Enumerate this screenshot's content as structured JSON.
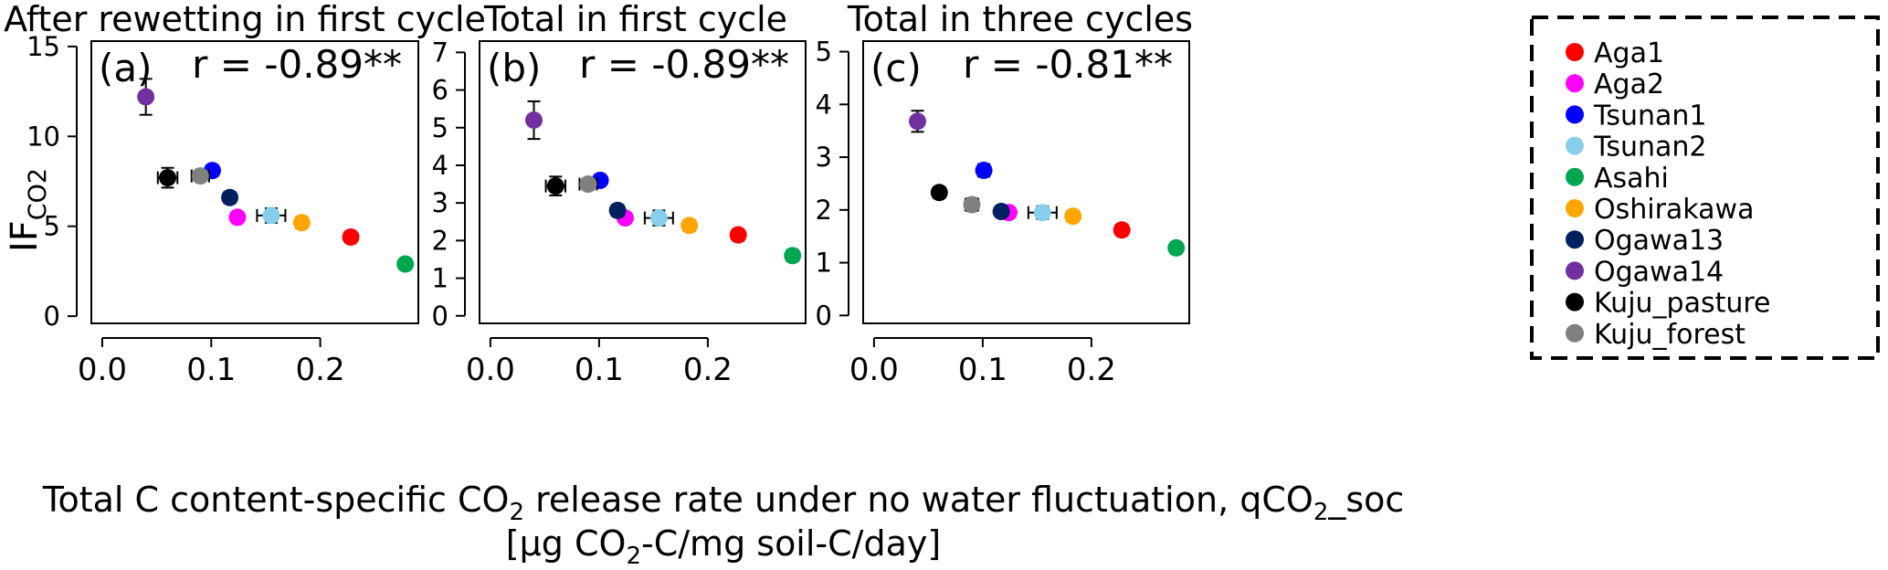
{
  "figure": {
    "y_label_main": "IF",
    "y_label_sub": "CO2",
    "x_label_line1_part1": "Total C content-specific CO",
    "x_label_line1_sub": "2",
    "x_label_line1_part2": " release rate under no water fluctuation, qCO",
    "x_label_line1_sub2": "2",
    "x_label_line1_part3": "_soc",
    "x_label_line2_part1": "[μg CO",
    "x_label_line2_sub": "2",
    "x_label_line2_part2": "-C/mg soil-C/day]"
  },
  "legend": [
    {
      "name": "Aga1",
      "color": "#ff0000"
    },
    {
      "name": "Aga2",
      "color": "#ff00ff"
    },
    {
      "name": "Tsunan1",
      "color": "#0000ff"
    },
    {
      "name": "Tsunan2",
      "color": "#87ceeb"
    },
    {
      "name": "Asahi",
      "color": "#00a650"
    },
    {
      "name": "Oshirakawa",
      "color": "#ffa500"
    },
    {
      "name": "Ogawa13",
      "color": "#002060"
    },
    {
      "name": "Ogawa14",
      "color": "#7030a0"
    },
    {
      "name": "Kuju_pasture",
      "color": "#000000"
    },
    {
      "name": "Kuju_forest",
      "color": "#808080"
    }
  ],
  "chart_data": [
    {
      "type": "scatter",
      "title": "After rewetting in first cycle",
      "panel_label": "(a)",
      "r_text": "r = -0.89**",
      "xlabel": "Total C content-specific CO2 release rate under no water fluctuation, qCO2_soc [μg CO2-C/mg soil-C/day]",
      "ylabel": "IFCO2",
      "xlim": [
        -0.01,
        0.29
      ],
      "ylim": [
        -0.4,
        15.3
      ],
      "xticks": [
        0.0,
        0.1,
        0.2
      ],
      "xtick_labels": [
        "0.0",
        "0.1",
        "0.2"
      ],
      "yticks": [
        0,
        5,
        10,
        15
      ],
      "ytick_labels": [
        "0",
        "5",
        "10",
        "15"
      ],
      "points": [
        {
          "site": "Aga1",
          "x": 0.228,
          "y": 4.4,
          "xerr": 0.005,
          "yerr": 0.3
        },
        {
          "site": "Aga2",
          "x": 0.124,
          "y": 5.5,
          "xerr": 0,
          "yerr": 0.2
        },
        {
          "site": "Tsunan1",
          "x": 0.101,
          "y": 8.1,
          "xerr": 0.005,
          "yerr": 0.3
        },
        {
          "site": "Tsunan2",
          "x": 0.155,
          "y": 5.6,
          "xerr": 0.013,
          "yerr": 0.4
        },
        {
          "site": "Asahi",
          "x": 0.278,
          "y": 2.9,
          "xerr": 0.005,
          "yerr": 0.25
        },
        {
          "site": "Oshirakawa",
          "x": 0.183,
          "y": 5.2,
          "xerr": 0.005,
          "yerr": 0.25
        },
        {
          "site": "Ogawa13",
          "x": 0.117,
          "y": 6.6,
          "xerr": 0.005,
          "yerr": 0.3
        },
        {
          "site": "Ogawa14",
          "x": 0.04,
          "y": 12.2,
          "xerr": 0,
          "yerr": 1.0
        },
        {
          "site": "Kuju_pasture",
          "x": 0.06,
          "y": 7.7,
          "xerr": 0.009,
          "yerr": 0.55
        },
        {
          "site": "Kuju_forest",
          "x": 0.09,
          "y": 7.8,
          "xerr": 0.008,
          "yerr": 0.3
        }
      ]
    },
    {
      "type": "scatter",
      "title": "Total in first cycle",
      "panel_label": "(b)",
      "r_text": "r = -0.89**",
      "xlabel": "Total C content-specific CO2 release rate under no water fluctuation, qCO2_soc [μg CO2-C/mg soil-C/day]",
      "ylabel": "IFCO2",
      "xlim": [
        -0.01,
        0.29
      ],
      "ylim": [
        -0.2,
        7.3
      ],
      "xticks": [
        0.0,
        0.1,
        0.2
      ],
      "xtick_labels": [
        "0.0",
        "0.1",
        "0.2"
      ],
      "yticks": [
        0,
        1,
        2,
        3,
        4,
        5,
        6,
        7
      ],
      "ytick_labels": [
        "0",
        "1",
        "2",
        "3",
        "4",
        "5",
        "6",
        "7"
      ],
      "points": [
        {
          "site": "Aga1",
          "x": 0.228,
          "y": 2.15,
          "xerr": 0.005,
          "yerr": 0.15
        },
        {
          "site": "Aga2",
          "x": 0.124,
          "y": 2.6,
          "xerr": 0,
          "yerr": 0.1
        },
        {
          "site": "Tsunan1",
          "x": 0.101,
          "y": 3.6,
          "xerr": 0.005,
          "yerr": 0.12
        },
        {
          "site": "Tsunan2",
          "x": 0.155,
          "y": 2.6,
          "xerr": 0.013,
          "yerr": 0.2
        },
        {
          "site": "Asahi",
          "x": 0.278,
          "y": 1.6,
          "xerr": 0.005,
          "yerr": 0.15
        },
        {
          "site": "Oshirakawa",
          "x": 0.183,
          "y": 2.4,
          "xerr": 0.005,
          "yerr": 0.12
        },
        {
          "site": "Ogawa13",
          "x": 0.117,
          "y": 2.8,
          "xerr": 0.005,
          "yerr": 0.15
        },
        {
          "site": "Ogawa14",
          "x": 0.04,
          "y": 5.2,
          "xerr": 0,
          "yerr": 0.5
        },
        {
          "site": "Kuju_pasture",
          "x": 0.06,
          "y": 3.45,
          "xerr": 0.009,
          "yerr": 0.25
        },
        {
          "site": "Kuju_forest",
          "x": 0.09,
          "y": 3.5,
          "xerr": 0.008,
          "yerr": 0.15
        }
      ]
    },
    {
      "type": "scatter",
      "title": "Total in three cycles",
      "panel_label": "(c)",
      "r_text": "r = -0.81**",
      "xlabel": "Total C content-specific CO2 release rate under no water fluctuation, qCO2_soc [μg CO2-C/mg soil-C/day]",
      "ylabel": "IFCO2",
      "xlim": [
        -0.01,
        0.29
      ],
      "ylim": [
        -0.15,
        5.2
      ],
      "xticks": [
        0.0,
        0.1,
        0.2
      ],
      "xtick_labels": [
        "0.0",
        "0.1",
        "0.2"
      ],
      "yticks": [
        0,
        1,
        2,
        3,
        4,
        5
      ],
      "ytick_labels": [
        "0",
        "1",
        "2",
        "3",
        "4",
        "5"
      ],
      "points": [
        {
          "site": "Aga1",
          "x": 0.228,
          "y": 1.62,
          "xerr": 0.005,
          "yerr": 0.1
        },
        {
          "site": "Aga2",
          "x": 0.124,
          "y": 1.95,
          "xerr": 0,
          "yerr": 0.07
        },
        {
          "site": "Tsunan1",
          "x": 0.101,
          "y": 2.75,
          "xerr": 0.005,
          "yerr": 0.12
        },
        {
          "site": "Tsunan2",
          "x": 0.155,
          "y": 1.95,
          "xerr": 0.013,
          "yerr": 0.12
        },
        {
          "site": "Asahi",
          "x": 0.278,
          "y": 1.28,
          "xerr": 0.005,
          "yerr": 0.1
        },
        {
          "site": "Oshirakawa",
          "x": 0.183,
          "y": 1.88,
          "xerr": 0.005,
          "yerr": 0.08
        },
        {
          "site": "Ogawa13",
          "x": 0.117,
          "y": 1.97,
          "xerr": 0.005,
          "yerr": 0.1
        },
        {
          "site": "Ogawa14",
          "x": 0.04,
          "y": 3.68,
          "xerr": 0,
          "yerr": 0.2
        },
        {
          "site": "Kuju_pasture",
          "x": 0.06,
          "y": 2.33,
          "xerr": 0.005,
          "yerr": 0.1
        },
        {
          "site": "Kuju_forest",
          "x": 0.09,
          "y": 2.1,
          "xerr": 0.006,
          "yerr": 0.12
        }
      ]
    }
  ]
}
